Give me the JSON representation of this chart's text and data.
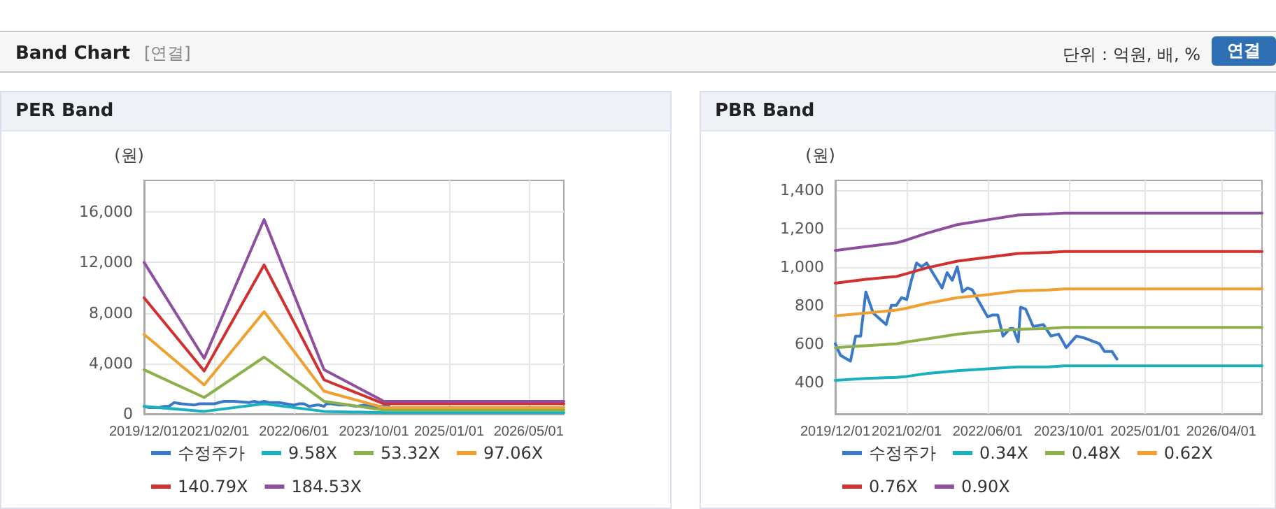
{
  "chart_data": [
    {
      "type": "other",
      "title": "Band Chart",
      "subtitle": "[연결]",
      "annotations": [
        "단위 : 억원, 배, %",
        "연결"
      ]
    },
    {
      "type": "line",
      "title": "PER Band",
      "ylabel": "(원)",
      "xlim": [
        "2019-12-01",
        "2026-12-01"
      ],
      "ylim": [
        0,
        18500
      ],
      "yticks": [
        0,
        {
          "value": 4000,
          "label": "4,000"
        },
        {
          "value": 8000,
          "label": "8,000"
        },
        {
          "value": 12000,
          "label": "12,000"
        },
        {
          "value": 16000,
          "label": "16,000"
        }
      ],
      "xticks": [
        {
          "value": "2019-12-01",
          "label": "2019/12/01"
        },
        {
          "value": "2021-02-01",
          "label": "2021/02/01"
        },
        {
          "value": "2022-06-01",
          "label": "2022/06/01"
        },
        {
          "value": "2023-10-01",
          "label": "2023/10/01"
        },
        {
          "value": "2025-01-01",
          "label": "2025/01/01"
        },
        {
          "value": "2026-05-01",
          "label": "2026/05/01"
        }
      ],
      "grid": true,
      "legend": "bottom",
      "marker": "none",
      "line_style": "solid",
      "series": [
        {
          "name": "수정주가",
          "color": "#3a78c9",
          "x": [
            "2019-12",
            "2020-01",
            "2020-03",
            "2020-04",
            "2020-05",
            "2020-06",
            "2020-07-15",
            "2020-10",
            "2020-11",
            "2020-12",
            "2021-01",
            "2021-02",
            "2021-03",
            "2021-04",
            "2021-05",
            "2021-06",
            "2021-09",
            "2021-10",
            "2021-11",
            "2021-12",
            "2022-01",
            "2022-02",
            "2022-03",
            "2022-06",
            "2022-07",
            "2022-08",
            "2022-09",
            "2022-10-15",
            "2022-11",
            "2022-12",
            "2022-12-15",
            "2023-01-15",
            "2023-03",
            "2023-05",
            "2023-06-15",
            "2023-08",
            "2023-09-15",
            "2023-11-15",
            "2024-01"
          ],
          "values": [
            600,
            500,
            500,
            600,
            600,
            900,
            800,
            700,
            800,
            800,
            800,
            800,
            900,
            1000,
            1000,
            1000,
            900,
            1000,
            900,
            1000,
            900,
            900,
            900,
            700,
            800,
            800,
            600,
            700,
            700,
            600,
            800,
            800,
            700,
            700,
            600,
            700,
            600,
            600,
            600
          ]
        },
        {
          "name": "9.58X",
          "color": "#1ab0c0",
          "x": [
            "2019-12",
            "2020-12",
            "2021-12",
            "2022-12",
            "2023-12",
            "2026-12"
          ],
          "values": [
            600,
            200,
            800,
            200,
            100,
            100
          ]
        },
        {
          "name": "53.32X",
          "color": "#8cb04a",
          "x": [
            "2019-12",
            "2020-12",
            "2021-12",
            "2022-12",
            "2023-12",
            "2026-12"
          ],
          "values": [
            3500,
            1300,
            4500,
            1000,
            300,
            300
          ]
        },
        {
          "name": "97.06X",
          "color": "#f0a030",
          "x": [
            "2019-12",
            "2020-12",
            "2021-12",
            "2022-12",
            "2023-12",
            "2026-12"
          ],
          "values": [
            6300,
            2300,
            8100,
            1800,
            500,
            500
          ]
        },
        {
          "name": "140.79X",
          "color": "#d03030",
          "x": [
            "2019-12",
            "2020-12",
            "2021-12",
            "2022-12",
            "2023-12",
            "2026-12"
          ],
          "values": [
            9200,
            3400,
            11800,
            2700,
            800,
            800
          ]
        },
        {
          "name": "184.53X",
          "color": "#8e4fa0",
          "x": [
            "2019-12",
            "2020-12",
            "2021-12",
            "2022-12",
            "2023-12",
            "2026-12"
          ],
          "values": [
            12000,
            4400,
            15400,
            3500,
            1000,
            1000
          ]
        }
      ]
    },
    {
      "type": "line",
      "title": "PBR Band",
      "ylabel": "(원)",
      "xlim": [
        "2019-12-01",
        "2026-12-01"
      ],
      "ylim": [
        235,
        1450
      ],
      "yticks": [
        400,
        600,
        800,
        {
          "value": 1000,
          "label": "1,000"
        },
        {
          "value": 1200,
          "label": "1,200"
        },
        {
          "value": 1400,
          "label": "1,400"
        }
      ],
      "xticks": [
        {
          "value": "2019-12-01",
          "label": "2019/12/01"
        },
        {
          "value": "2021-02-01",
          "label": "2021/02/01"
        },
        {
          "value": "2022-06-01",
          "label": "2022/06/01"
        },
        {
          "value": "2023-10-01",
          "label": "2023/10/01"
        },
        {
          "value": "2025-01-01",
          "label": "2025/01/01"
        },
        {
          "value": "2026-04-01",
          "label": "2026/04/01"
        }
      ],
      "grid": true,
      "legend": "bottom",
      "marker": "none",
      "line_style": "solid",
      "series": [
        {
          "name": "수정주가",
          "color": "#3a78c9",
          "x": [
            "2019-12",
            "2020-01",
            "2020-03",
            "2020-04",
            "2020-05",
            "2020-06",
            "2020-07-15",
            "2020-10",
            "2020-11",
            "2020-12",
            "2021-01",
            "2021-02",
            "2021-03",
            "2021-04",
            "2021-05",
            "2021-06",
            "2021-09",
            "2021-10",
            "2021-11",
            "2021-12",
            "2022-01",
            "2022-02",
            "2022-03",
            "2022-06",
            "2022-07",
            "2022-08",
            "2022-09",
            "2022-10-15",
            "2022-11",
            "2022-12",
            "2022-12-15",
            "2023-01-15",
            "2023-03",
            "2023-05",
            "2023-06-15",
            "2023-08",
            "2023-09-15",
            "2023-11-15",
            "2024-01",
            "2024-04",
            "2024-05",
            "2024-06-15",
            "2024-07-15"
          ],
          "values": [
            600,
            540,
            510,
            640,
            640,
            870,
            760,
            700,
            800,
            800,
            840,
            830,
            930,
            1020,
            1000,
            1020,
            890,
            970,
            930,
            1000,
            870,
            890,
            880,
            740,
            750,
            750,
            640,
            680,
            680,
            610,
            790,
            780,
            690,
            700,
            640,
            650,
            580,
            640,
            630,
            600,
            560,
            560,
            520
          ]
        },
        {
          "name": "0.34X",
          "color": "#1ab0c0",
          "x": [
            "2019-12",
            "2020-06",
            "2020-12",
            "2021-02",
            "2021-06",
            "2021-12",
            "2022-06",
            "2022-12",
            "2023-06",
            "2023-09",
            "2026-12"
          ],
          "values": [
            410,
            420,
            425,
            430,
            445,
            460,
            470,
            480,
            480,
            485,
            485
          ]
        },
        {
          "name": "0.48X",
          "color": "#8cb04a",
          "x": [
            "2019-12",
            "2020-06",
            "2020-12",
            "2021-02",
            "2021-06",
            "2021-12",
            "2022-06",
            "2022-12",
            "2023-06",
            "2023-09",
            "2026-12"
          ],
          "values": [
            580,
            590,
            600,
            610,
            625,
            650,
            665,
            675,
            680,
            685,
            685
          ]
        },
        {
          "name": "0.62X",
          "color": "#f0a030",
          "x": [
            "2019-12",
            "2020-06",
            "2020-12",
            "2021-02",
            "2021-06",
            "2021-12",
            "2022-06",
            "2022-12",
            "2023-06",
            "2023-09",
            "2026-12"
          ],
          "values": [
            745,
            760,
            775,
            785,
            810,
            840,
            855,
            875,
            880,
            885,
            885
          ]
        },
        {
          "name": "0.76X",
          "color": "#d03030",
          "x": [
            "2019-12",
            "2020-06",
            "2020-12",
            "2021-02",
            "2021-06",
            "2021-12",
            "2022-06",
            "2022-12",
            "2023-06",
            "2023-09",
            "2026-12"
          ],
          "values": [
            915,
            935,
            950,
            965,
            995,
            1030,
            1050,
            1070,
            1075,
            1080,
            1080
          ]
        },
        {
          "name": "0.90X",
          "color": "#8e4fa0",
          "x": [
            "2019-12",
            "2020-06",
            "2020-12",
            "2021-02",
            "2021-06",
            "2021-12",
            "2022-06",
            "2022-12",
            "2023-06",
            "2023-09",
            "2026-12"
          ],
          "values": [
            1085,
            1105,
            1125,
            1140,
            1175,
            1220,
            1245,
            1270,
            1275,
            1280,
            1280
          ]
        }
      ]
    }
  ]
}
